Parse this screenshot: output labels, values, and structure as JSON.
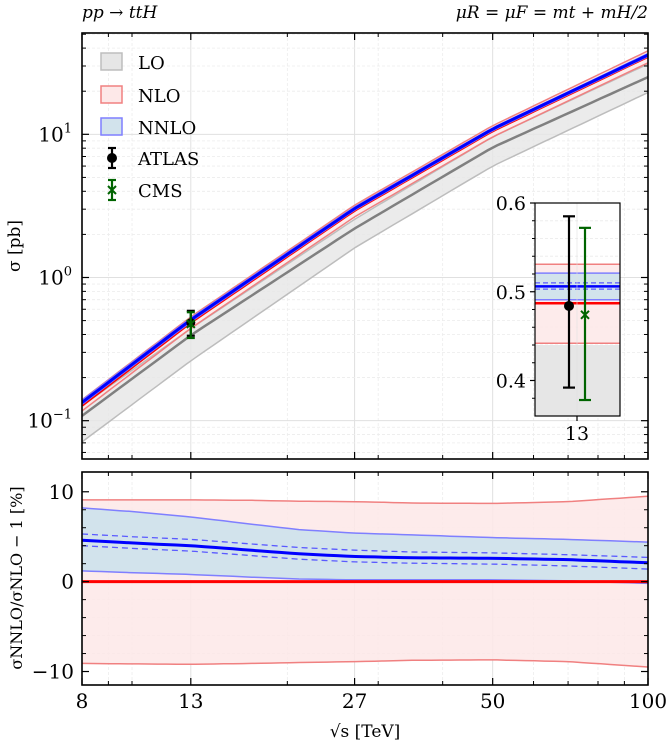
{
  "chart_data": [
    {
      "panel": "main",
      "type": "line",
      "title_left": "pp → ttH",
      "title_right": "μR = μF = mt + mH/2",
      "xlabel": "√s [TeV]",
      "ylabel": "σ [pb]",
      "xscale": "log",
      "yscale": "log",
      "xlim": [
        8,
        100
      ],
      "ylim": [
        0.054,
        51
      ],
      "yticks": [
        {
          "value": 0.1,
          "base": "10",
          "exp": "−1"
        },
        {
          "value": 1,
          "base": "10",
          "exp": "0"
        },
        {
          "value": 10,
          "base": "10",
          "exp": "1"
        }
      ],
      "grid": true,
      "legend_position": "top-left",
      "x": [
        8,
        13,
        27,
        50,
        100
      ],
      "series": [
        {
          "name": "LO",
          "color": "#808080",
          "band_color": "#bdbdbd",
          "fill": "#e6e6e6",
          "central": [
            0.108,
            0.395,
            2.2,
            8.1,
            25.1
          ],
          "lower": [
            0.071,
            0.262,
            1.61,
            6.0,
            19.6
          ],
          "upper": [
            0.127,
            0.44,
            2.55,
            9.6,
            31.0
          ]
        },
        {
          "name": "NLO",
          "color": "#ff0000",
          "band_color": "#f08080",
          "fill": "#fde8e8",
          "central": [
            0.128,
            0.487,
            2.95,
            10.6,
            35.0
          ],
          "lower": [
            0.117,
            0.442,
            2.65,
            9.6,
            31.6
          ],
          "upper": [
            0.14,
            0.531,
            3.2,
            11.5,
            38.3
          ]
        },
        {
          "name": "NNLO",
          "color": "#0000ff",
          "band_color": "#7f7fff",
          "fill": "#d2e3ec",
          "central": [
            0.134,
            0.506,
            3.03,
            10.9,
            35.8
          ],
          "lower": [
            0.13,
            0.491,
            2.96,
            10.63,
            35.0
          ],
          "upper": [
            0.139,
            0.521,
            3.11,
            11.1,
            36.6
          ],
          "dashed_lower": [
            0.133,
            0.503,
            3.01,
            10.8,
            35.5
          ],
          "dashed_upper": [
            0.135,
            0.51,
            3.05,
            10.95,
            36.0
          ]
        }
      ],
      "data_points": [
        {
          "name": "ATLAS",
          "x": 13,
          "y": 0.484,
          "ylow": 0.392,
          "yhigh": 0.585,
          "marker": "circle",
          "color": "#000000"
        },
        {
          "name": "CMS",
          "x": 13,
          "y": 0.474,
          "ylow": 0.378,
          "yhigh": 0.572,
          "marker": "x",
          "color": "#006400"
        }
      ],
      "legend": [
        "LO",
        "NLO",
        "NNLO",
        "ATLAS",
        "CMS"
      ]
    },
    {
      "panel": "inset",
      "type": "scatter",
      "xticks": [
        "13"
      ],
      "ylim": [
        0.36,
        0.6
      ],
      "yticks": [
        "0.4",
        "0.5",
        "0.6"
      ],
      "ytick_values": [
        0.4,
        0.5,
        0.6
      ],
      "LO_upper": 0.44,
      "NLO": {
        "central": 0.487,
        "lower": 0.442,
        "upper": 0.531
      },
      "NNLO": {
        "central": 0.506,
        "lower": 0.491,
        "upper": 0.521,
        "dashed_lower": 0.503,
        "dashed_upper": 0.51
      },
      "ATLAS": {
        "y": 0.484,
        "ylow": 0.392,
        "yhigh": 0.585
      },
      "CMS": {
        "y": 0.474,
        "ylow": 0.378,
        "yhigh": 0.572
      }
    },
    {
      "panel": "ratio",
      "type": "line",
      "ylabel": "σNNLO/σNLO − 1 [%]",
      "xlabel": "√s [TeV]",
      "xscale": "log",
      "xlim": [
        8,
        100
      ],
      "ylim": [
        -11.5,
        12.2
      ],
      "xticks": [
        "8",
        "13",
        "27",
        "50",
        "100"
      ],
      "xtick_values": [
        8,
        13,
        27,
        50,
        100
      ],
      "yticks": [
        "−10",
        "0",
        "10"
      ],
      "ytick_values": [
        -10,
        0,
        10
      ],
      "x": [
        8,
        10,
        13,
        17,
        21,
        27,
        35,
        50,
        70,
        100
      ],
      "NLO_upper": [
        9.1,
        9.1,
        9.1,
        9.05,
        8.95,
        8.9,
        8.75,
        8.7,
        8.9,
        9.5
      ],
      "NLO_lower": [
        -9.1,
        -9.15,
        -9.2,
        -9.1,
        -9.0,
        -8.9,
        -8.75,
        -8.7,
        -8.9,
        -9.5
      ],
      "NNLO_upper": [
        8.2,
        7.8,
        7.2,
        6.4,
        5.8,
        5.4,
        5.2,
        4.9,
        4.7,
        4.4
      ],
      "NNLO_central": [
        4.6,
        4.3,
        4.0,
        3.5,
        3.1,
        2.8,
        2.65,
        2.6,
        2.45,
        2.1
      ],
      "NNLO_dashed_upper": [
        5.3,
        5.0,
        4.7,
        4.2,
        3.8,
        3.5,
        3.3,
        3.2,
        3.0,
        2.7
      ],
      "NNLO_dashed_lower": [
        4.0,
        3.7,
        3.4,
        2.9,
        2.5,
        2.2,
        2.05,
        1.95,
        1.75,
        1.4
      ],
      "NNLO_lower": [
        1.2,
        1.0,
        0.8,
        0.5,
        0.3,
        0.2,
        0.2,
        0.2,
        0.1,
        -0.2
      ],
      "NLO_central": [
        0,
        0,
        0,
        0,
        0,
        0,
        0,
        0,
        0,
        0
      ]
    }
  ]
}
